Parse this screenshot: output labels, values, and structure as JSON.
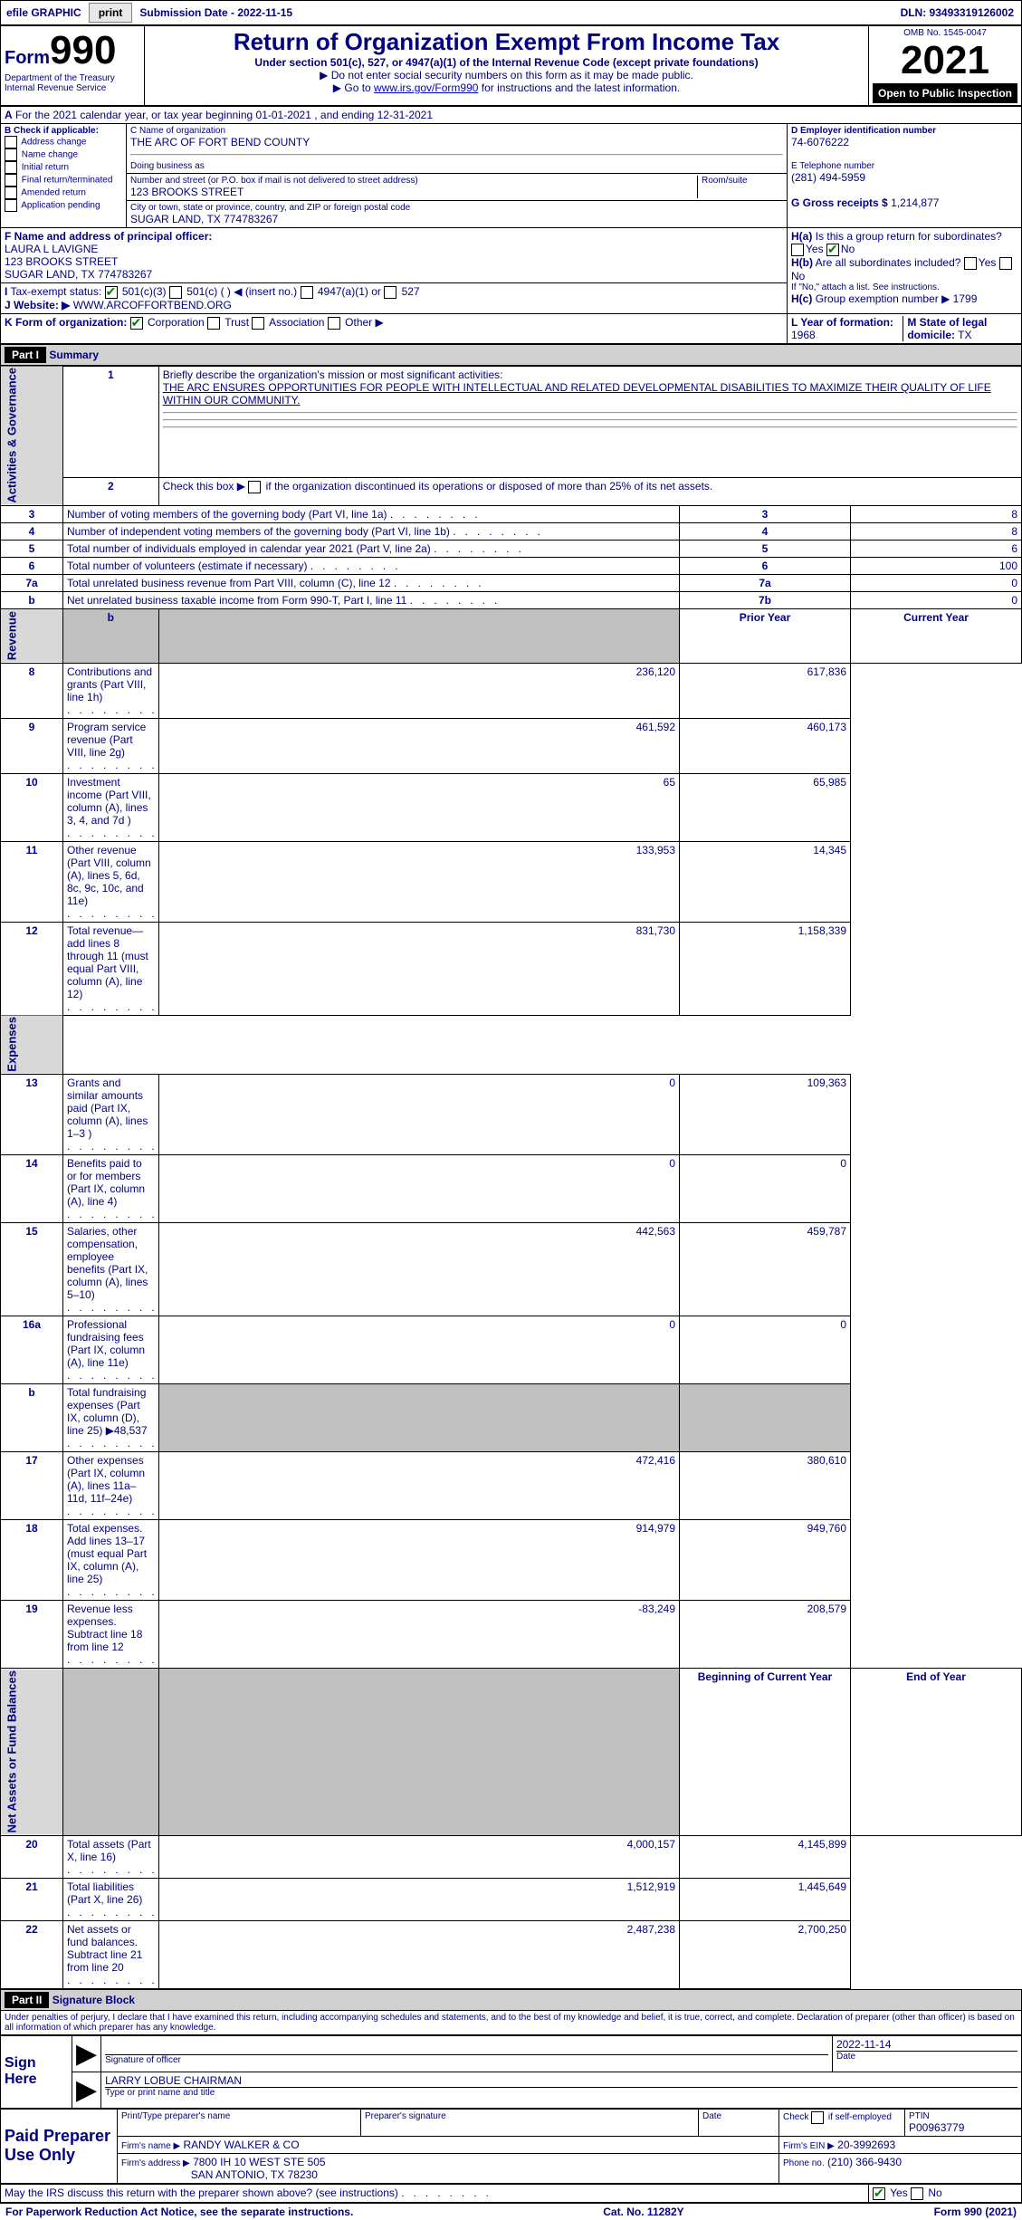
{
  "topbar": {
    "efile_label": "efile GRAPHIC",
    "print_btn": "print",
    "submission_label": "Submission Date - 2022-11-15",
    "dln": "DLN: 93493319126002"
  },
  "header": {
    "form_word": "Form",
    "form_num": "990",
    "dept": "Department of the Treasury",
    "irs": "Internal Revenue Service",
    "title": "Return of Organization Exempt From Income Tax",
    "subtitle": "Under section 501(c), 527, or 4947(a)(1) of the Internal Revenue Code (except private foundations)",
    "note1": "Do not enter social security numbers on this form as it may be made public.",
    "note2_pre": "Go to ",
    "note2_link": "www.irs.gov/Form990",
    "note2_post": " for instructions and the latest information.",
    "omb": "OMB No. 1545-0047",
    "year": "2021",
    "open": "Open to Public Inspection"
  },
  "period": {
    "line": "For the 2021 calendar year, or tax year beginning 01-01-2021    , and ending 12-31-2021"
  },
  "boxB": {
    "label": "B Check if applicable:",
    "items": [
      "Address change",
      "Name change",
      "Initial return",
      "Final return/terminated",
      "Amended return",
      "Application pending"
    ]
  },
  "boxC": {
    "name_label": "C Name of organization",
    "name": "THE ARC OF FORT BEND COUNTY",
    "dba_label": "Doing business as",
    "addr_label": "Number and street (or P.O. box if mail is not delivered to street address)",
    "room_label": "Room/suite",
    "addr": "123 BROOKS STREET",
    "city_label": "City or town, state or province, country, and ZIP or foreign postal code",
    "city": "SUGAR LAND, TX  774783267"
  },
  "boxD": {
    "label": "D Employer identification number",
    "value": "74-6076222"
  },
  "boxE": {
    "label": "E Telephone number",
    "value": "(281) 494-5959"
  },
  "boxG": {
    "label": "G Gross receipts $",
    "value": "1,214,877"
  },
  "boxF": {
    "label": "F  Name and address of principal officer:",
    "name": "LAURA L LAVIGNE",
    "addr1": "123 BROOKS STREET",
    "addr2": "SUGAR LAND, TX  774783267"
  },
  "boxH": {
    "a": "Is this a group return for subordinates?",
    "b": "Are all subordinates included?",
    "b_note": "If \"No,\" attach a list. See instructions.",
    "c": "Group exemption number ▶",
    "c_val": "1799",
    "yes": "Yes",
    "no": "No"
  },
  "boxI": {
    "label": "Tax-exempt status:",
    "o1": "501(c)(3)",
    "o2": "501(c) (   ) ◀ (insert no.)",
    "o3": "4947(a)(1) or",
    "o4": "527"
  },
  "boxJ": {
    "label": "Website: ▶",
    "value": "WWW.ARCOFFORTBEND.ORG"
  },
  "boxK": {
    "label": "K Form of organization:",
    "o1": "Corporation",
    "o2": "Trust",
    "o3": "Association",
    "o4": "Other ▶"
  },
  "boxL": {
    "label": "L Year of formation:",
    "value": "1968"
  },
  "boxM": {
    "label": "M State of legal domicile:",
    "value": "TX"
  },
  "part1": {
    "header": "Part I",
    "title": "Summary",
    "l1": "Briefly describe the organization's mission or most significant activities:",
    "l1_text": "THE ARC ENSURES OPPORTUNITIES FOR PEOPLE WITH INTELLECTUAL AND RELATED DEVELOPMENTAL DISABILITIES TO MAXIMIZE THEIR QUALITY OF LIFE WITHIN OUR COMMUNITY.",
    "l2": "Check this box ▶       if the organization discontinued its operations or disposed of more than 25% of its net assets.",
    "rows_ag": [
      {
        "n": "3",
        "t": "Number of voting members of the governing body (Part VI, line 1a)",
        "box": "3",
        "v": "8"
      },
      {
        "n": "4",
        "t": "Number of independent voting members of the governing body (Part VI, line 1b)",
        "box": "4",
        "v": "8"
      },
      {
        "n": "5",
        "t": "Total number of individuals employed in calendar year 2021 (Part V, line 2a)",
        "box": "5",
        "v": "6"
      },
      {
        "n": "6",
        "t": "Total number of volunteers (estimate if necessary)",
        "box": "6",
        "v": "100"
      },
      {
        "n": "7a",
        "t": "Total unrelated business revenue from Part VIII, column (C), line 12",
        "box": "7a",
        "v": "0"
      },
      {
        "n": "b",
        "t": "Net unrelated business taxable income from Form 990-T, Part I, line 11",
        "box": "7b",
        "v": "0"
      }
    ],
    "prior": "Prior Year",
    "current": "Current Year",
    "rev": [
      {
        "n": "8",
        "t": "Contributions and grants (Part VIII, line 1h)",
        "p": "236,120",
        "c": "617,836"
      },
      {
        "n": "9",
        "t": "Program service revenue (Part VIII, line 2g)",
        "p": "461,592",
        "c": "460,173"
      },
      {
        "n": "10",
        "t": "Investment income (Part VIII, column (A), lines 3, 4, and 7d )",
        "p": "65",
        "c": "65,985"
      },
      {
        "n": "11",
        "t": "Other revenue (Part VIII, column (A), lines 5, 6d, 8c, 9c, 10c, and 11e)",
        "p": "133,953",
        "c": "14,345"
      },
      {
        "n": "12",
        "t": "Total revenue—add lines 8 through 11 (must equal Part VIII, column (A), line 12)",
        "p": "831,730",
        "c": "1,158,339"
      }
    ],
    "exp": [
      {
        "n": "13",
        "t": "Grants and similar amounts paid (Part IX, column (A), lines 1–3 )",
        "p": "0",
        "c": "109,363"
      },
      {
        "n": "14",
        "t": "Benefits paid to or for members (Part IX, column (A), line 4)",
        "p": "0",
        "c": "0"
      },
      {
        "n": "15",
        "t": "Salaries, other compensation, employee benefits (Part IX, column (A), lines 5–10)",
        "p": "442,563",
        "c": "459,787"
      },
      {
        "n": "16a",
        "t": "Professional fundraising fees (Part IX, column (A), line 11e)",
        "p": "0",
        "c": "0"
      },
      {
        "n": "b",
        "t": "Total fundraising expenses (Part IX, column (D), line 25) ▶48,537",
        "p": "",
        "c": "",
        "gray": true
      },
      {
        "n": "17",
        "t": "Other expenses (Part IX, column (A), lines 11a–11d, 11f–24e)",
        "p": "472,416",
        "c": "380,610"
      },
      {
        "n": "18",
        "t": "Total expenses. Add lines 13–17 (must equal Part IX, column (A), line 25)",
        "p": "914,979",
        "c": "949,760"
      },
      {
        "n": "19",
        "t": "Revenue less expenses. Subtract line 18 from line 12",
        "p": "-83,249",
        "c": "208,579"
      }
    ],
    "boy": "Beginning of Current Year",
    "eoy": "End of Year",
    "net": [
      {
        "n": "20",
        "t": "Total assets (Part X, line 16)",
        "p": "4,000,157",
        "c": "4,145,899"
      },
      {
        "n": "21",
        "t": "Total liabilities (Part X, line 26)",
        "p": "1,512,919",
        "c": "1,445,649"
      },
      {
        "n": "22",
        "t": "Net assets or fund balances. Subtract line 21 from line 20",
        "p": "2,487,238",
        "c": "2,700,250"
      }
    ],
    "vlabels": {
      "ag": "Activities & Governance",
      "rev": "Revenue",
      "exp": "Expenses",
      "net": "Net Assets or Fund Balances"
    }
  },
  "part2": {
    "header": "Part II",
    "title": "Signature Block",
    "decl": "Under penalties of perjury, I declare that I have examined this return, including accompanying schedules and statements, and to the best of my knowledge and belief, it is true, correct, and complete. Declaration of preparer (other than officer) is based on all information of which preparer has any knowledge.",
    "sign_here": "Sign Here",
    "sig_officer": "Signature of officer",
    "sig_date": "2022-11-14",
    "date_label": "Date",
    "type_name_label": "Type or print name and title",
    "officer_name": "LARRY LOBUE  CHAIRMAN",
    "paid": "Paid Preparer Use Only",
    "pt_name_label": "Print/Type preparer's name",
    "pt_sig_label": "Preparer's signature",
    "pt_date_label": "Date",
    "pt_check": "Check         if self-employed",
    "ptin_label": "PTIN",
    "ptin": "P00963779",
    "firm_name_label": "Firm's name    ▶",
    "firm_name": "RANDY WALKER & CO",
    "firm_ein_label": "Firm's EIN ▶",
    "firm_ein": "20-3992693",
    "firm_addr_label": "Firm's address ▶",
    "firm_addr1": "7800 IH 10 WEST STE 505",
    "firm_addr2": "SAN ANTONIO, TX  78230",
    "phone_label": "Phone no.",
    "phone": "(210) 366-9430",
    "discuss": "May the IRS discuss this return with the preparer shown above? (see instructions)",
    "yes": "Yes",
    "no": "No"
  },
  "footer": {
    "left": "For Paperwork Reduction Act Notice, see the separate instructions.",
    "mid": "Cat. No. 11282Y",
    "right": "Form 990 (2021)"
  }
}
